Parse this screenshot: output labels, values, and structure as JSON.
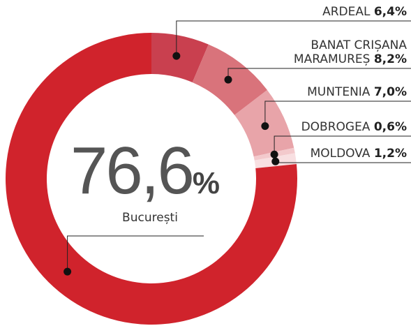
{
  "chart_data": {
    "type": "donut",
    "categories": [
      "ARDEAL",
      "BANAT CRIȘANA MARAMUREȘ",
      "MUNTENIA",
      "DOBROGEA",
      "MOLDOVA",
      "București"
    ],
    "values": [
      6.4,
      8.2,
      7.0,
      0.6,
      1.2,
      76.6
    ],
    "value_labels": [
      "6,4%",
      "8,2%",
      "7,0%",
      "0,6%",
      "1,2%",
      "76,6%"
    ],
    "colors": [
      "#c9404f",
      "#d9737b",
      "#e8a4a9",
      "#f3c9cc",
      "#f8dfe1",
      "#d0232c"
    ]
  }
}
